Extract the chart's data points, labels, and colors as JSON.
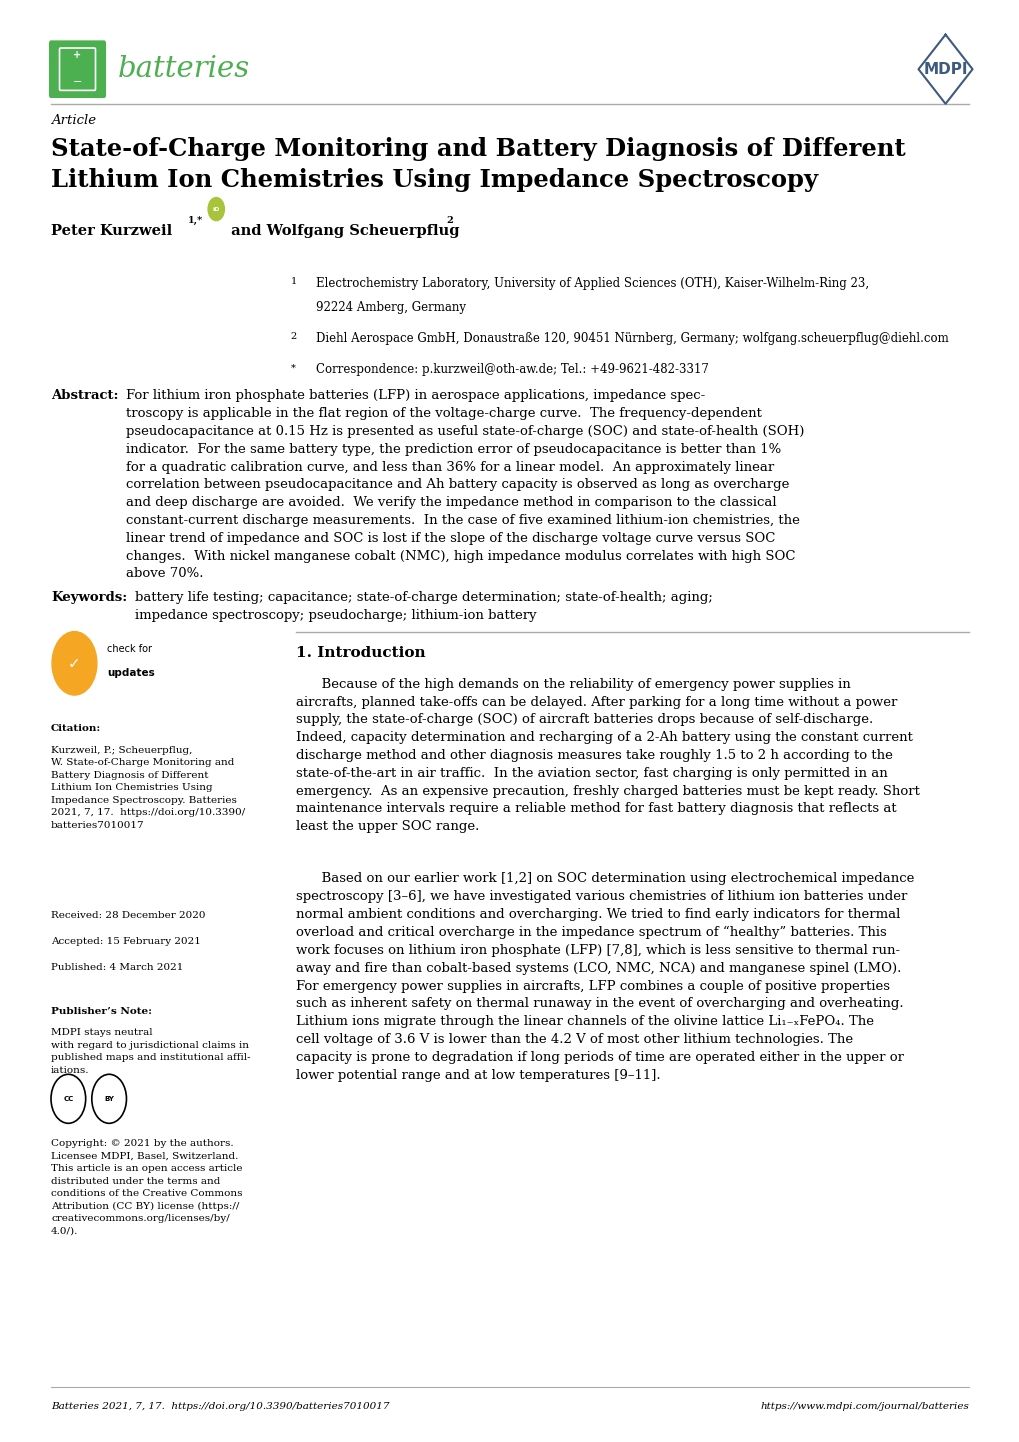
{
  "page_bg": "#ffffff",
  "header_line_color": "#aaaaaa",
  "green_color": "#4caf50",
  "mdpi_blue": "#3d5a80",
  "journal_name": "batteries",
  "article_label": "Article",
  "title": "State-of-Charge Monitoring and Battery Diagnosis of Different\nLithium Ion Chemistries Using Impedance Spectroscopy",
  "affil1": "Electrochemistry Laboratory, University of Applied Sciences (OTH), Kaiser-Wilhelm-Ring 23,",
  "affil1b": "92224 Amberg, Germany",
  "affil2": "Diehl Aerospace GmbH, Donaustraße 120, 90451 Nürnberg, Germany; wolfgang.scheuerpflug@diehl.com",
  "corr": "Correspondence: p.kurzweil@oth-aw.de; Tel.: +49-9621-482-3317",
  "abstract_label": "Abstract:",
  "abstract_text": "For lithium iron phosphate batteries (LFP) in aerospace applications, impedance spec-\ntroscopy is applicable in the flat region of the voltage-charge curve.  The frequency-dependent\npseudocapacitance at 0.15 Hz is presented as useful state-of-charge (SOC) and state-of-health (SOH)\nindicator.  For the same battery type, the prediction error of pseudocapacitance is better than 1%\nfor a quadratic calibration curve, and less than 36% for a linear model.  An approximately linear\ncorrelation between pseudocapacitance and Ah battery capacity is observed as long as overcharge\nand deep discharge are avoided.  We verify the impedance method in comparison to the classical\nconstant-current discharge measurements.  In the case of five examined lithium-ion chemistries, the\nlinear trend of impedance and SOC is lost if the slope of the discharge voltage curve versus SOC\nchanges.  With nickel manganese cobalt (NMC), high impedance modulus correlates with high SOC\nabove 70%.",
  "keywords_label": "Keywords:",
  "keywords_text": "battery life testing; capacitance; state-of-charge determination; state-of-health; aging;\nimpedance spectroscopy; pseudocharge; lithium-ion battery",
  "section1_title": "1. Introduction",
  "intro_para1": "      Because of the high demands on the reliability of emergency power supplies in\naircrafts, planned take-offs can be delayed. After parking for a long time without a power\nsupply, the state-of-charge (SOC) of aircraft batteries drops because of self-discharge.\nIndeed, capacity determination and recharging of a 2-Ah battery using the constant current\ndischarge method and other diagnosis measures take roughly 1.5 to 2 h according to the\nstate-of-the-art in air traffic.  In the aviation sector, fast charging is only permitted in an\nemergency.  As an expensive precaution, freshly charged batteries must be kept ready. Short\nmaintenance intervals require a reliable method for fast battery diagnosis that reflects at\nleast the upper SOC range.",
  "intro_para2": "      Based on our earlier work [1,2] on SOC determination using electrochemical impedance\nspectroscopy [3–6], we have investigated various chemistries of lithium ion batteries under\nnormal ambient conditions and overcharging. We tried to find early indicators for thermal\noverload and critical overcharge in the impedance spectrum of “healthy” batteries. This\nwork focuses on lithium iron phosphate (LFP) [7,8], which is less sensitive to thermal run-\naway and fire than cobalt-based systems (LCO, NMC, NCA) and manganese spinel (LMO).\nFor emergency power supplies in aircrafts, LFP combines a couple of positive properties\nsuch as inherent safety on thermal runaway in the event of overcharging and overheating.\nLithium ions migrate through the linear channels of the olivine lattice Li₁₋ₓFePO₄. The\ncell voltage of 3.6 V is lower than the 4.2 V of most other lithium technologies. The\ncapacity is prone to degradation if long periods of time are operated either in the upper or\nlower potential range and at low temperatures [9–11].",
  "citation_label": "Citation:",
  "citation_body": "Kurzweil, P.; Scheuerpflug,\nW. State-of-Charge Monitoring and\nBattery Diagnosis of Different\nLithium Ion Chemistries Using\nImpedance Spectroscopy. Batteries\n2021, 7, 17.  https://doi.org/10.3390/\nbatteries7010017",
  "received": "Received: 28 December 2020",
  "accepted": "Accepted: 15 February 2021",
  "published": "Published: 4 March 2021",
  "publisher_note_label": "Publisher’s Note:",
  "publisher_note_body": "MDPI stays neutral\nwith regard to jurisdictional claims in\npublished maps and institutional affil-\niations.",
  "cc_text": "Copyright: © 2021 by the authors.\nLicensee MDPI, Basel, Switzerland.\nThis article is an open access article\ndistributed under the terms and\nconditions of the Creative Commons\nAttribution (CC BY) license (https://\ncreativecommons.org/licenses/by/\n4.0/).",
  "footer_left": "Batteries 2021, 7, 17.  https://doi.org/10.3390/batteries7010017",
  "footer_right": "https://www.mdpi.com/journal/batteries"
}
